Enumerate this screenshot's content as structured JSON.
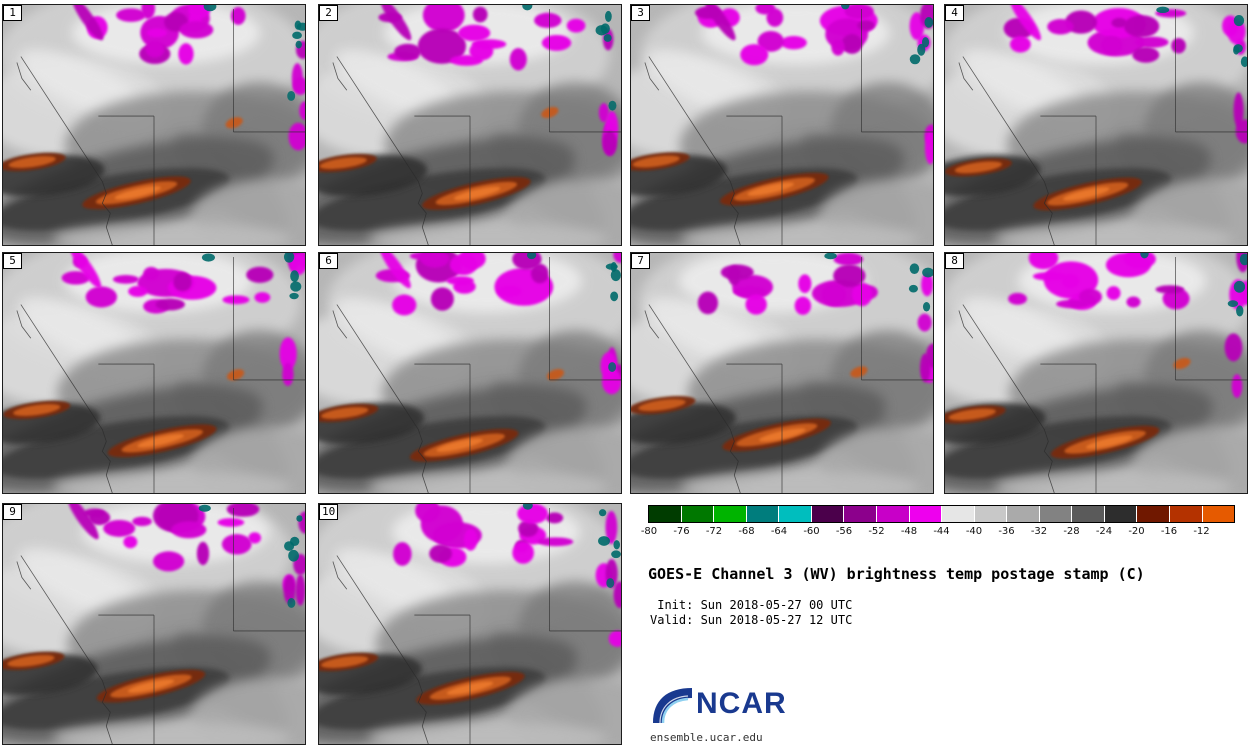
{
  "panels": {
    "labels": [
      "1",
      "2",
      "3",
      "4",
      "5",
      "6",
      "7",
      "8",
      "9",
      "10"
    ]
  },
  "colorbar": {
    "ticks": [
      "-80",
      "-76",
      "-72",
      "-68",
      "-64",
      "-60",
      "-56",
      "-52",
      "-48",
      "-44",
      "-40",
      "-36",
      "-32",
      "-28",
      "-24",
      "-20",
      "-16",
      "-12"
    ],
    "colors": [
      "#003c00",
      "#007800",
      "#00b400",
      "#007d7d",
      "#00bebe",
      "#4b004b",
      "#8c008c",
      "#c800c8",
      "#ee00ee",
      "#e6e6e6",
      "#c8c8c8",
      "#aaaaaa",
      "#828282",
      "#5a5a5a",
      "#2d2d2d",
      "#701800",
      "#b43200",
      "#e65a00"
    ]
  },
  "info": {
    "title": "GOES-E Channel 3 (WV) brightness temp postage stamp (C)",
    "init_line": " Init: Sun 2018-05-27 00 UTC",
    "valid_line": "Valid: Sun 2018-05-27 12 UTC",
    "logo_text": "NCAR",
    "url": "ensemble.ucar.edu"
  },
  "imagery_palette": {
    "base": "#b6b6b6",
    "magenta": [
      "#b800b8",
      "#d200d2",
      "#e600e6"
    ],
    "teal": "#006a6a",
    "orange_edge": "#78290c",
    "orange_core": "#c65a1c",
    "orange_hot": "#e8762a",
    "border_line": "#2b2b2b"
  }
}
